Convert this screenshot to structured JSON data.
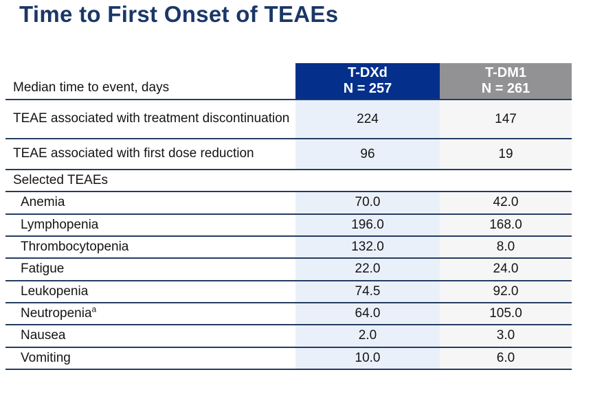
{
  "title": "Time to First Onset of TEAEs",
  "table": {
    "row_header_label": "Median time to event, days",
    "columns": [
      {
        "label": "T-DXd",
        "n": "N = 257"
      },
      {
        "label": "T-DM1",
        "n": "N = 261"
      }
    ],
    "rows": [
      {
        "kind": "primary",
        "label": "TEAE associated with treatment discontinuation",
        "tdxd": "224",
        "tdm1": "147"
      },
      {
        "kind": "primary",
        "label": "TEAE associated with first dose reduction",
        "tdxd": "96",
        "tdm1": "19"
      },
      {
        "kind": "section",
        "label": "Selected TEAEs"
      },
      {
        "kind": "item",
        "label": "Anemia",
        "tdxd": "70.0",
        "tdm1": "42.0"
      },
      {
        "kind": "item",
        "label": "Lymphopenia",
        "tdxd": "196.0",
        "tdm1": "168.0"
      },
      {
        "kind": "item",
        "label": "Thrombocytopenia",
        "tdxd": "132.0",
        "tdm1": "8.0"
      },
      {
        "kind": "item",
        "label": "Fatigue",
        "tdxd": "22.0",
        "tdm1": "24.0"
      },
      {
        "kind": "item",
        "label": "Leukopenia",
        "tdxd": "74.5",
        "tdm1": "92.0"
      },
      {
        "kind": "item",
        "label": "Neutropenia",
        "sup": "a",
        "tdxd": "64.0",
        "tdm1": "105.0"
      },
      {
        "kind": "item",
        "label": "Nausea",
        "tdxd": "2.0",
        "tdm1": "3.0"
      },
      {
        "kind": "item",
        "label": "Vomiting",
        "tdxd": "10.0",
        "tdm1": "6.0"
      }
    ]
  },
  "chart_data": {
    "type": "table",
    "title": "Time to First Onset of TEAEs",
    "unit": "Median time to event, days",
    "columns": [
      "T-DXd (N = 257)",
      "T-DM1 (N = 261)"
    ],
    "section_header": "Selected TEAEs",
    "rows": [
      [
        "TEAE associated with treatment discontinuation",
        224,
        147
      ],
      [
        "TEAE associated with first dose reduction",
        96,
        19
      ],
      [
        "Anemia",
        70.0,
        42.0
      ],
      [
        "Lymphopenia",
        196.0,
        168.0
      ],
      [
        "Thrombocytopenia",
        132.0,
        8.0
      ],
      [
        "Fatigue",
        22.0,
        24.0
      ],
      [
        "Leukopenia",
        74.5,
        92.0
      ],
      [
        "Neutropenia",
        64.0,
        105.0
      ],
      [
        "Nausea",
        2.0,
        3.0
      ],
      [
        "Vomiting",
        10.0,
        6.0
      ]
    ]
  },
  "colors": {
    "title_navy": "#1B3767",
    "border_navy": "#243B5F",
    "header_blue": "#04308C",
    "header_gray": "#929295",
    "col_blue": "#EAF0F9",
    "col_gray": "#F6F6F7"
  }
}
